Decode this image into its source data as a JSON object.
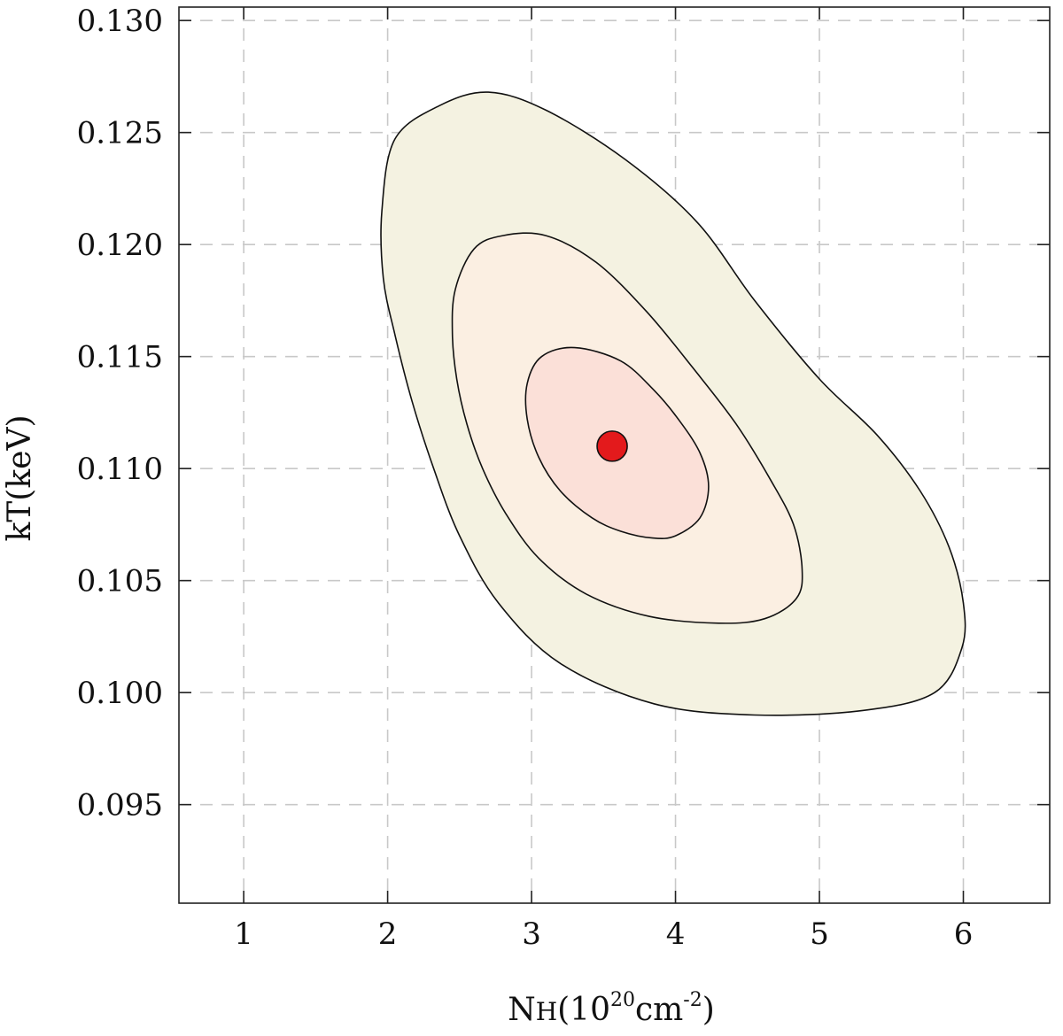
{
  "chart_data": {
    "type": "contour",
    "xlabel": {
      "main": "N",
      "sub": "H",
      "open": "(10",
      "exp1": "20",
      "mid": "cm",
      "exp2": "-2",
      "close": ")"
    },
    "ylabel": "kT(keV)",
    "xlim": [
      0.55,
      6.6
    ],
    "ylim": [
      0.0906,
      0.1306
    ],
    "x_ticks": [
      1,
      2,
      3,
      4,
      5,
      6
    ],
    "x_tick_labels": [
      "1",
      "2",
      "3",
      "4",
      "5",
      "6"
    ],
    "y_ticks": [
      0.095,
      0.1,
      0.105,
      0.11,
      0.115,
      0.12,
      0.125,
      0.13
    ],
    "y_tick_labels": [
      "0.095",
      "0.100",
      "0.105",
      "0.110",
      "0.115",
      "0.120",
      "0.125",
      "0.130"
    ],
    "grid": true,
    "best_fit": {
      "x": 3.56,
      "y": 0.111,
      "color": "#e31a1c"
    },
    "contours": [
      {
        "name": "contour-outer",
        "fill": "#f4f2e1",
        "points": [
          [
            2.36,
            0.1262
          ],
          [
            2.05,
            0.1247
          ],
          [
            1.96,
            0.1215
          ],
          [
            1.97,
            0.1185
          ],
          [
            2.05,
            0.116
          ],
          [
            2.17,
            0.113
          ],
          [
            2.32,
            0.11
          ],
          [
            2.5,
            0.107
          ],
          [
            2.77,
            0.104
          ],
          [
            3.2,
            0.1013
          ],
          [
            3.85,
            0.0995
          ],
          [
            4.55,
            0.099
          ],
          [
            5.3,
            0.0992
          ],
          [
            5.8,
            0.1
          ],
          [
            5.99,
            0.102
          ],
          [
            6.0,
            0.104
          ],
          [
            5.9,
            0.1065
          ],
          [
            5.7,
            0.109
          ],
          [
            5.4,
            0.1115
          ],
          [
            5.0,
            0.114
          ],
          [
            4.55,
            0.1175
          ],
          [
            4.15,
            0.121
          ],
          [
            3.65,
            0.1238
          ],
          [
            3.1,
            0.126
          ],
          [
            2.7,
            0.1268
          ]
        ]
      },
      {
        "name": "contour-middle",
        "fill": "#fbefe2",
        "points": [
          [
            2.8,
            0.1204
          ],
          [
            2.6,
            0.1198
          ],
          [
            2.47,
            0.118
          ],
          [
            2.45,
            0.116
          ],
          [
            2.48,
            0.114
          ],
          [
            2.55,
            0.112
          ],
          [
            2.66,
            0.11
          ],
          [
            2.82,
            0.108
          ],
          [
            3.05,
            0.106
          ],
          [
            3.38,
            0.1044
          ],
          [
            3.82,
            0.1034
          ],
          [
            4.3,
            0.1031
          ],
          [
            4.62,
            0.1033
          ],
          [
            4.84,
            0.1042
          ],
          [
            4.88,
            0.1055
          ],
          [
            4.82,
            0.1075
          ],
          [
            4.66,
            0.1095
          ],
          [
            4.42,
            0.112
          ],
          [
            4.12,
            0.1145
          ],
          [
            3.8,
            0.117
          ],
          [
            3.45,
            0.1192
          ],
          [
            3.1,
            0.1204
          ]
        ]
      },
      {
        "name": "contour-inner",
        "fill": "#fbe0d8",
        "points": [
          [
            3.3,
            0.1154
          ],
          [
            3.07,
            0.115
          ],
          [
            2.97,
            0.1138
          ],
          [
            2.97,
            0.1122
          ],
          [
            3.05,
            0.1105
          ],
          [
            3.2,
            0.109
          ],
          [
            3.42,
            0.1078
          ],
          [
            3.62,
            0.1072
          ],
          [
            3.84,
            0.1069
          ],
          [
            4.0,
            0.107
          ],
          [
            4.17,
            0.1078
          ],
          [
            4.23,
            0.1092
          ],
          [
            4.17,
            0.1107
          ],
          [
            4.02,
            0.1122
          ],
          [
            3.85,
            0.1135
          ],
          [
            3.62,
            0.1148
          ]
        ]
      }
    ]
  }
}
